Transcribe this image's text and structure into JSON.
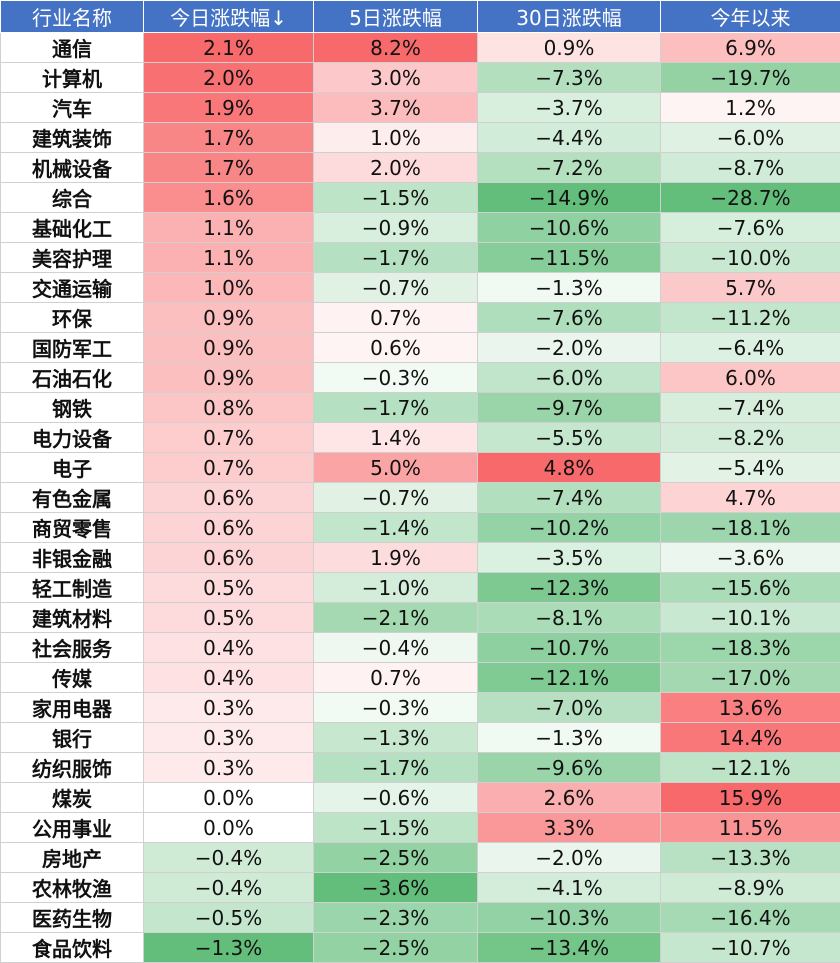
{
  "table": {
    "headers": [
      "行业名称",
      "今日涨跌幅↓",
      "5日涨跌幅",
      "30日涨跌幅",
      "今年以来"
    ],
    "rows": [
      [
        "通信",
        "2.1%",
        "8.2%",
        "0.9%",
        "6.9%"
      ],
      [
        "计算机",
        "2.0%",
        "3.0%",
        "−7.3%",
        "−19.7%"
      ],
      [
        "汽车",
        "1.9%",
        "3.7%",
        "−3.7%",
        "1.2%"
      ],
      [
        "建筑装饰",
        "1.7%",
        "1.0%",
        "−4.4%",
        "−6.0%"
      ],
      [
        "机械设备",
        "1.7%",
        "2.0%",
        "−7.2%",
        "−8.7%"
      ],
      [
        "综合",
        "1.6%",
        "−1.5%",
        "−14.9%",
        "−28.7%"
      ],
      [
        "基础化工",
        "1.1%",
        "−0.9%",
        "−10.6%",
        "−7.6%"
      ],
      [
        "美容护理",
        "1.1%",
        "−1.7%",
        "−11.5%",
        "−10.0%"
      ],
      [
        "交通运输",
        "1.0%",
        "−0.7%",
        "−1.3%",
        "5.7%"
      ],
      [
        "环保",
        "0.9%",
        "0.7%",
        "−7.6%",
        "−11.2%"
      ],
      [
        "国防军工",
        "0.9%",
        "0.6%",
        "−2.0%",
        "−6.4%"
      ],
      [
        "石油石化",
        "0.9%",
        "−0.3%",
        "−6.0%",
        "6.0%"
      ],
      [
        "钢铁",
        "0.8%",
        "−1.7%",
        "−9.7%",
        "−7.4%"
      ],
      [
        "电力设备",
        "0.7%",
        "1.4%",
        "−5.5%",
        "−8.2%"
      ],
      [
        "电子",
        "0.7%",
        "5.0%",
        "4.8%",
        "−5.4%"
      ],
      [
        "有色金属",
        "0.6%",
        "−0.7%",
        "−7.4%",
        "4.7%"
      ],
      [
        "商贸零售",
        "0.6%",
        "−1.4%",
        "−10.2%",
        "−18.1%"
      ],
      [
        "非银金融",
        "0.6%",
        "1.9%",
        "−3.5%",
        "−3.6%"
      ],
      [
        "轻工制造",
        "0.5%",
        "−1.0%",
        "−12.3%",
        "−15.6%"
      ],
      [
        "建筑材料",
        "0.5%",
        "−2.1%",
        "−8.1%",
        "−10.1%"
      ],
      [
        "社会服务",
        "0.4%",
        "−0.4%",
        "−10.7%",
        "−18.3%"
      ],
      [
        "传媒",
        "0.4%",
        "0.7%",
        "−12.1%",
        "−17.0%"
      ],
      [
        "家用电器",
        "0.3%",
        "−0.3%",
        "−7.0%",
        "13.6%"
      ],
      [
        "银行",
        "0.3%",
        "−1.3%",
        "−1.3%",
        "14.4%"
      ],
      [
        "纺织服饰",
        "0.3%",
        "−1.7%",
        "−9.6%",
        "−12.1%"
      ],
      [
        "煤炭",
        "0.0%",
        "−0.6%",
        "2.6%",
        "15.9%"
      ],
      [
        "公用事业",
        "0.0%",
        "−1.5%",
        "3.3%",
        "11.5%"
      ],
      [
        "房地产",
        "−0.4%",
        "−2.5%",
        "−2.0%",
        "−13.3%"
      ],
      [
        "农林牧渔",
        "−0.4%",
        "−3.6%",
        "−4.1%",
        "−8.9%"
      ],
      [
        "医药生物",
        "−0.5%",
        "−2.3%",
        "−10.3%",
        "−16.4%"
      ],
      [
        "食品饮料",
        "−1.3%",
        "−2.5%",
        "−13.4%",
        "−10.7%"
      ]
    ]
  },
  "colors": {
    "header_bg": "#4472c4",
    "positive_max": "#f8696b",
    "negative_max": "#63be7b",
    "neutral": "#ffffff"
  }
}
